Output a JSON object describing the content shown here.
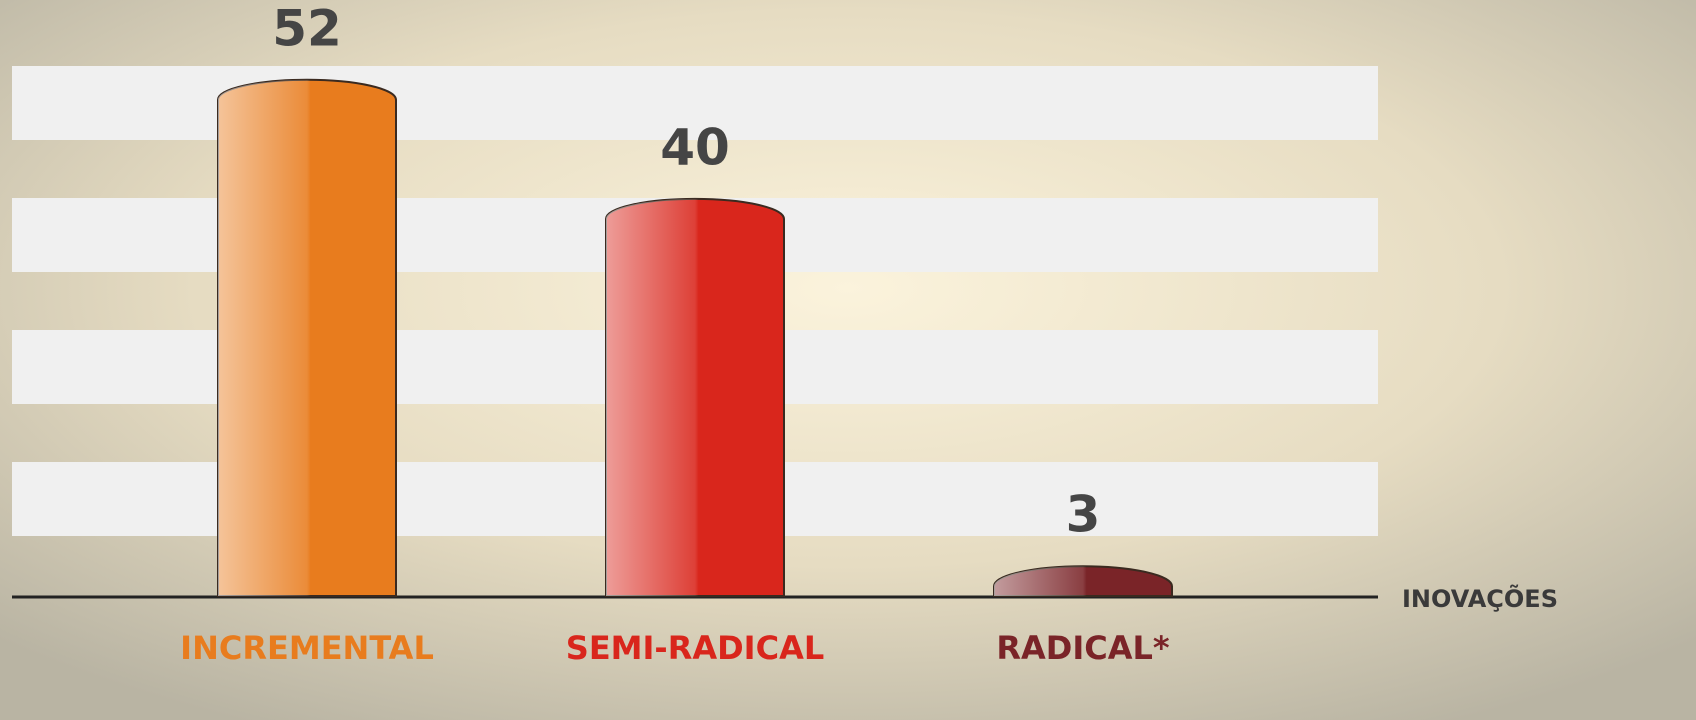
{
  "chart_data": {
    "type": "bar",
    "categories": [
      "INCREMENTAL",
      "SEMI-RADICAL",
      "RADICAL*"
    ],
    "values": [
      52,
      40,
      3
    ],
    "colors": [
      "#e87c1e",
      "#d9261c",
      "#7a2428"
    ],
    "x_label": "INOVAÇÕES",
    "ylim": [
      0,
      55
    ]
  }
}
